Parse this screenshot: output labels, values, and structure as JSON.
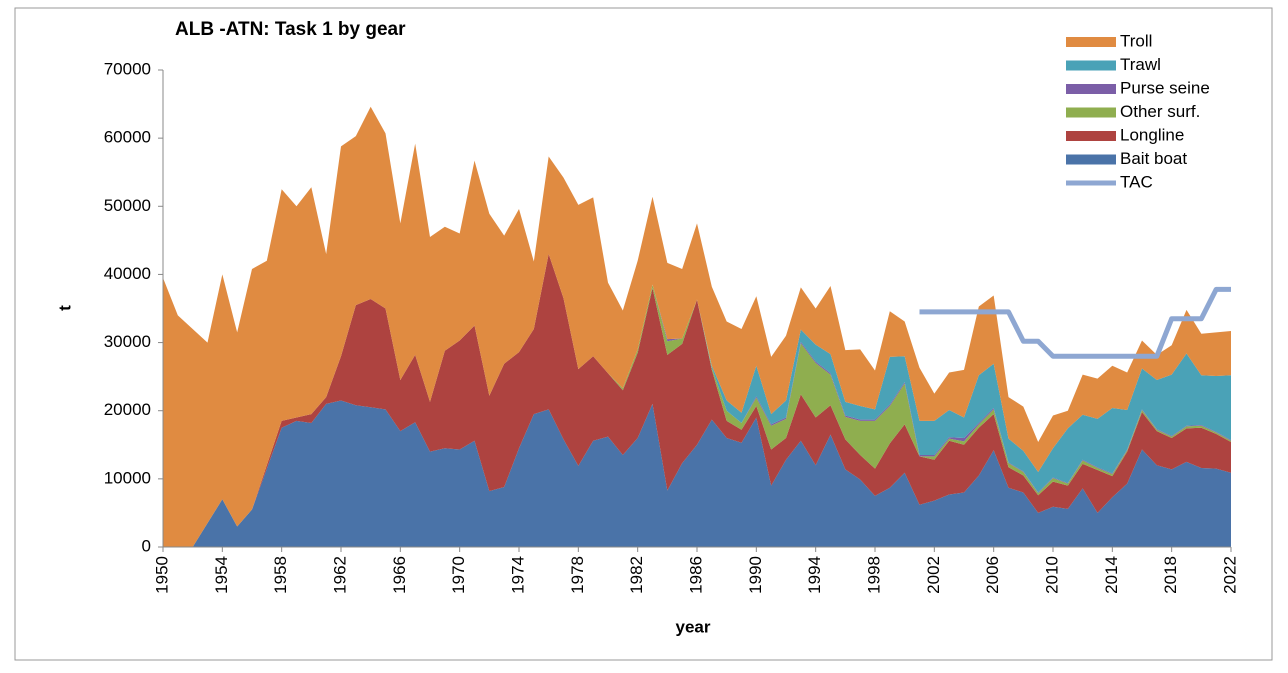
{
  "chart_data": {
    "type": "area",
    "stacked": true,
    "title": "ALB -ATN: Task 1 by gear",
    "x_label": "year",
    "y_label": "t",
    "x": [
      1950,
      1951,
      1952,
      1953,
      1954,
      1955,
      1956,
      1957,
      1958,
      1959,
      1960,
      1961,
      1962,
      1963,
      1964,
      1965,
      1966,
      1967,
      1968,
      1969,
      1970,
      1971,
      1972,
      1973,
      1974,
      1975,
      1976,
      1977,
      1978,
      1979,
      1980,
      1981,
      1982,
      1983,
      1984,
      1985,
      1986,
      1987,
      1988,
      1989,
      1990,
      1991,
      1992,
      1993,
      1994,
      1995,
      1996,
      1997,
      1998,
      1999,
      2000,
      2001,
      2002,
      2003,
      2004,
      2005,
      2006,
      2007,
      2008,
      2009,
      2010,
      2011,
      2012,
      2013,
      2014,
      2015,
      2016,
      2017,
      2018,
      2019,
      2020,
      2021,
      2022
    ],
    "xlim": [
      1950,
      2022
    ],
    "xticks": [
      1950,
      1954,
      1958,
      1962,
      1966,
      1970,
      1974,
      1978,
      1982,
      1986,
      1990,
      1994,
      1998,
      2002,
      2006,
      2010,
      2014,
      2018,
      2022
    ],
    "ylim": [
      0,
      70000
    ],
    "yticks": [
      0,
      10000,
      20000,
      30000,
      40000,
      50000,
      60000,
      70000
    ],
    "legend": "top-right",
    "series": [
      {
        "name": "Troll",
        "color": "#e08b41",
        "values": [
          39500,
          34000,
          32000,
          26500,
          33000,
          28500,
          35300,
          30000,
          34000,
          31000,
          33300,
          21000,
          30800,
          24800,
          28200,
          25700,
          23000,
          31000,
          24200,
          18200,
          15700,
          24200,
          26700,
          18800,
          21000,
          9900,
          14300,
          17700,
          24100,
          23300,
          13300,
          11400,
          13000,
          12900,
          11200,
          10200,
          11200,
          11600,
          11600,
          12300,
          10200,
          8400,
          9500,
          6200,
          5300,
          10000,
          7600,
          8300,
          5700,
          6700,
          5100,
          7800,
          4000,
          5500,
          7000,
          10100,
          10000,
          6100,
          6500,
          4400,
          4800,
          2600,
          5900,
          5900,
          6200,
          5500,
          4100,
          3700,
          4300,
          6400,
          6100,
          6400,
          6500
        ]
      },
      {
        "name": "Trawl",
        "color": "#4aa2b7",
        "values": [
          0,
          0,
          0,
          0,
          0,
          0,
          0,
          0,
          0,
          0,
          0,
          0,
          0,
          0,
          0,
          0,
          0,
          0,
          0,
          0,
          0,
          0,
          0,
          0,
          0,
          0,
          0,
          0,
          0,
          0,
          0,
          0,
          0,
          0,
          0,
          0,
          0,
          300,
          1500,
          1500,
          4500,
          1500,
          2500,
          1800,
          2500,
          2800,
          2000,
          2000,
          1500,
          7000,
          3800,
          5000,
          5000,
          4000,
          3000,
          7000,
          6500,
          3500,
          3000,
          3000,
          4300,
          8000,
          6600,
          7100,
          9600,
          5800,
          6000,
          7200,
          9000,
          10600,
          7300,
          8200,
          9500
        ]
      },
      {
        "name": "Purse seine",
        "color": "#7b5ea7",
        "values": [
          0,
          0,
          0,
          0,
          0,
          0,
          0,
          0,
          0,
          0,
          0,
          0,
          0,
          0,
          0,
          0,
          0,
          0,
          0,
          0,
          0,
          0,
          0,
          0,
          0,
          0,
          0,
          0,
          0,
          0,
          0,
          0,
          0,
          0,
          300,
          0,
          0,
          0,
          0,
          0,
          200,
          200,
          200,
          200,
          200,
          200,
          200,
          200,
          200,
          200,
          200,
          200,
          200,
          200,
          500,
          200,
          200,
          100,
          100,
          100,
          100,
          100,
          100,
          100,
          100,
          100,
          100,
          100,
          100,
          100,
          100,
          100,
          100
        ]
      },
      {
        "name": "Other surf.",
        "color": "#8fae4f",
        "values": [
          0,
          0,
          0,
          0,
          0,
          0,
          0,
          0,
          0,
          0,
          0,
          0,
          0,
          0,
          0,
          0,
          0,
          0,
          0,
          0,
          0,
          0,
          0,
          0,
          0,
          0,
          0,
          0,
          0,
          0,
          0,
          300,
          500,
          500,
          2000,
          800,
          0,
          300,
          1500,
          1000,
          1200,
          3500,
          2800,
          7500,
          8000,
          4500,
          3300,
          5000,
          7000,
          5500,
          6000,
          0,
          500,
          300,
          500,
          500,
          700,
          600,
          500,
          300,
          500,
          300,
          500,
          300,
          300,
          200,
          300,
          200,
          200,
          300,
          300,
          200,
          200
        ]
      },
      {
        "name": "Longline",
        "color": "#ae4340",
        "values": [
          0,
          0,
          0,
          0,
          0,
          0,
          0,
          500,
          1000,
          500,
          1300,
          1000,
          6500,
          14700,
          15900,
          14800,
          7500,
          9900,
          7300,
          14300,
          16000,
          16900,
          14000,
          18100,
          14100,
          12500,
          22800,
          20700,
          14200,
          12400,
          9300,
          9500,
          12500,
          17000,
          19900,
          17500,
          21300,
          7300,
          2500,
          1900,
          1700,
          5300,
          3200,
          6800,
          7000,
          4300,
          4400,
          3600,
          4000,
          6500,
          7100,
          7100,
          6000,
          7900,
          7000,
          7000,
          5300,
          3000,
          2500,
          2600,
          3700,
          3400,
          3600,
          6300,
          3100,
          4700,
          5500,
          5000,
          4600,
          4900,
          5900,
          5100,
          4500
        ]
      },
      {
        "name": "Bait boat",
        "color": "#4a73a8",
        "values": [
          0,
          0,
          0,
          3500,
          7000,
          3000,
          5500,
          11500,
          17500,
          18500,
          18200,
          21000,
          21500,
          20800,
          20500,
          20200,
          17000,
          18300,
          14000,
          14500,
          14300,
          15600,
          8200,
          8800,
          14500,
          19500,
          20200,
          15800,
          11900,
          15600,
          16200,
          13500,
          16000,
          21000,
          8300,
          12300,
          15000,
          18700,
          16000,
          15300,
          19000,
          9000,
          12800,
          15600,
          12000,
          16500,
          11400,
          9900,
          7500,
          8700,
          10900,
          6200,
          6800,
          7700,
          8000,
          10500,
          14200,
          8700,
          8000,
          5000,
          5900,
          5600,
          8600,
          5000,
          7300,
          9300,
          14300,
          12000,
          11400,
          12500,
          11600,
          11500,
          10900
        ]
      },
      {
        "name": "TAC",
        "color": "#8ea7d2",
        "style": "line",
        "values": [
          null,
          null,
          null,
          null,
          null,
          null,
          null,
          null,
          null,
          null,
          null,
          null,
          null,
          null,
          null,
          null,
          null,
          null,
          null,
          null,
          null,
          null,
          null,
          null,
          null,
          null,
          null,
          null,
          null,
          null,
          null,
          null,
          null,
          null,
          null,
          null,
          null,
          null,
          null,
          null,
          null,
          null,
          null,
          null,
          null,
          null,
          null,
          null,
          null,
          null,
          null,
          34500,
          34500,
          34500,
          34500,
          34500,
          34500,
          34500,
          30200,
          30200,
          28000,
          28000,
          28000,
          28000,
          28000,
          28000,
          28000,
          28000,
          33500,
          33500,
          33500,
          37800,
          37800
        ]
      }
    ]
  }
}
